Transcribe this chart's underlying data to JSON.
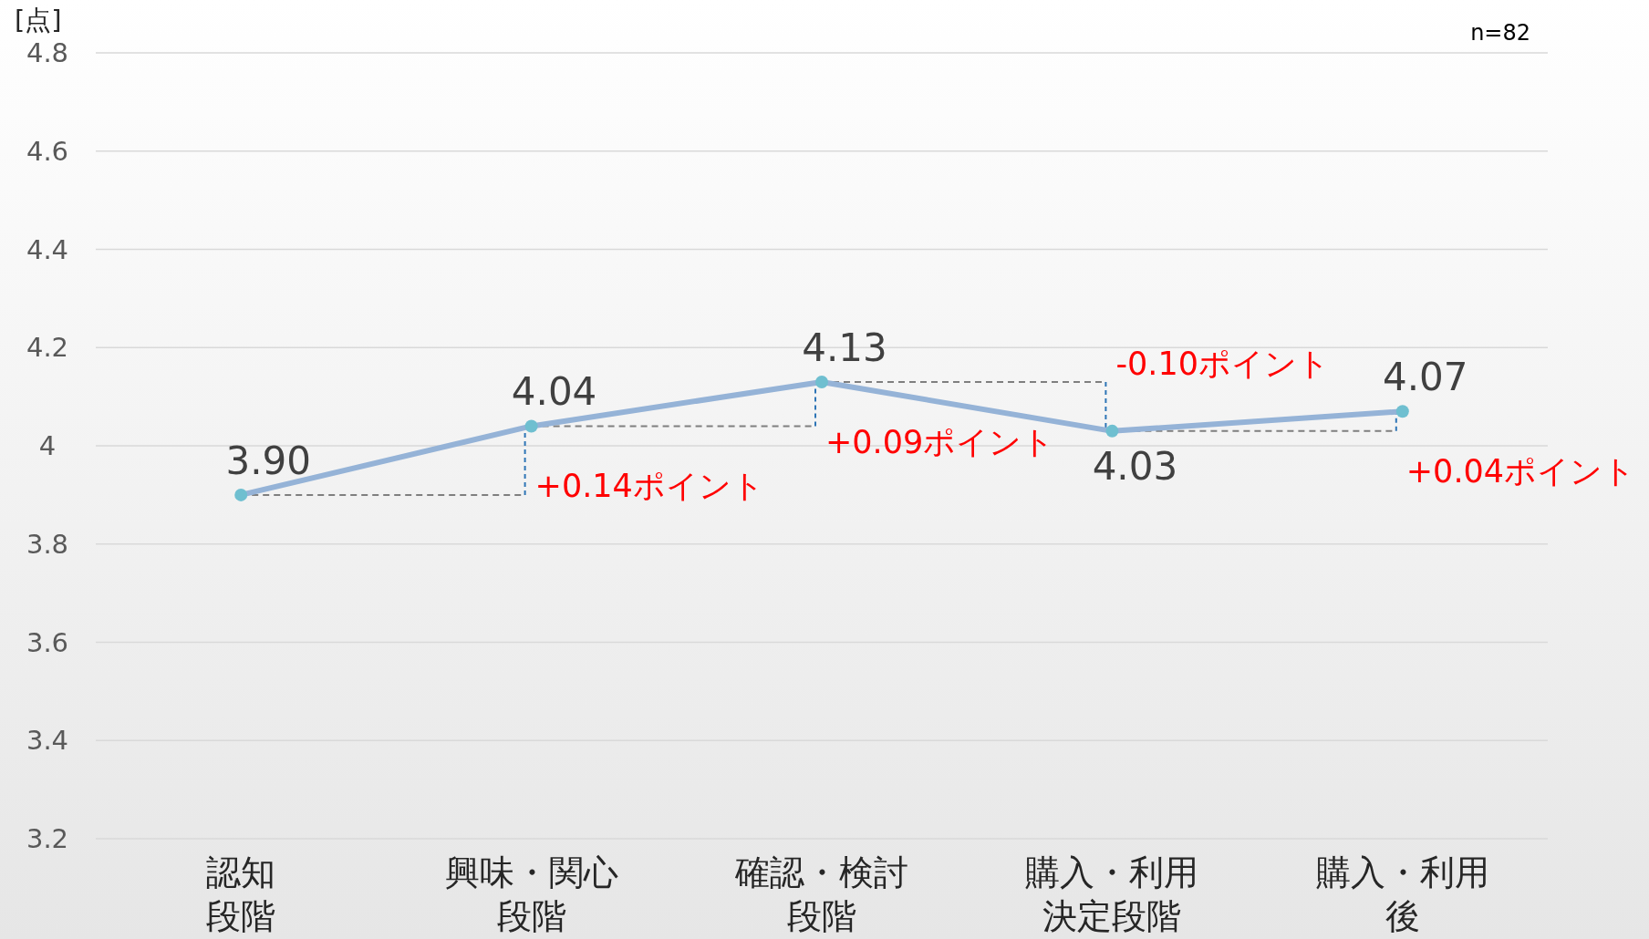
{
  "chart_data": {
    "type": "line",
    "ylabel": "[点]",
    "categories": [
      "認知段階",
      "興味・関心段階",
      "確認・検討段階",
      "購入・利用決定段階",
      "購入・利用後"
    ],
    "series": [
      {
        "color": "#95b3d7",
        "values": [
          3.9,
          4.04,
          4.13,
          4.03,
          4.07
        ],
        "value_labels": [
          "3.90",
          "4.04",
          "4.13",
          "4.03",
          "4.07"
        ]
      }
    ],
    "ylim": [
      3.2,
      4.8
    ],
    "yticks": [
      3.2,
      3.4,
      3.6,
      3.8,
      4,
      4.2,
      4.4,
      4.6,
      4.8
    ],
    "grid": "y",
    "marker": "circle",
    "annotations": [
      "n=82",
      {
        "text": "+0.14ポイント",
        "x": "興味・関心段階",
        "y": 4.04
      },
      {
        "text": "+0.09ポイント",
        "x": "確認・検討段階",
        "y": 4.13
      },
      {
        "text": "-0.10ポイント",
        "x": "購入・利用決定段階",
        "y": 4.03
      },
      {
        "text": "+0.04ポイント",
        "x": "購入・利用後",
        "y": 4.07
      }
    ]
  }
}
